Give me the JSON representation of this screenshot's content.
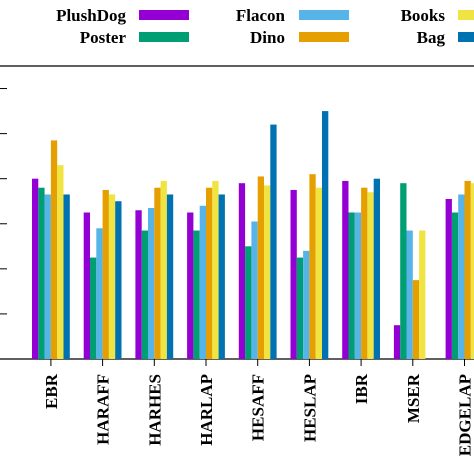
{
  "chart_data": {
    "type": "bar",
    "title": "",
    "xlabel": "",
    "ylabel": "",
    "ylim": [
      0,
      1.3
    ],
    "grid": false,
    "legend_position": "top",
    "categories": [
      "EBR",
      "HARAFF",
      "HARHES",
      "HARLAP",
      "HESAFF",
      "HESLAP",
      "IBR",
      "MSER",
      "EDGELAP"
    ],
    "series": [
      {
        "name": "PlushDog",
        "color": "#9400D3",
        "values": [
          0.8,
          0.65,
          0.66,
          0.65,
          0.78,
          0.75,
          0.79,
          0.15,
          0.71
        ]
      },
      {
        "name": "Poster",
        "color": "#009E73",
        "values": [
          0.76,
          0.45,
          0.57,
          0.57,
          0.5,
          0.45,
          0.65,
          0.78,
          0.65
        ]
      },
      {
        "name": "Flacon",
        "color": "#56B4E9",
        "values": [
          0.73,
          0.58,
          0.67,
          0.68,
          0.61,
          0.48,
          0.65,
          0.57,
          0.73
        ]
      },
      {
        "name": "Dino",
        "color": "#E69F00",
        "values": [
          0.97,
          0.75,
          0.76,
          0.76,
          0.81,
          0.82,
          0.76,
          0.35,
          0.79
        ]
      },
      {
        "name": "Books",
        "color": "#F0E442",
        "values": [
          0.86,
          0.73,
          0.79,
          0.79,
          0.77,
          0.76,
          0.74,
          0.57,
          0.78
        ]
      },
      {
        "name": "Bag",
        "color": "#0072B2",
        "values": [
          0.73,
          0.7,
          0.73,
          0.73,
          1.04,
          1.1,
          0.8,
          null,
          null
        ]
      }
    ]
  }
}
